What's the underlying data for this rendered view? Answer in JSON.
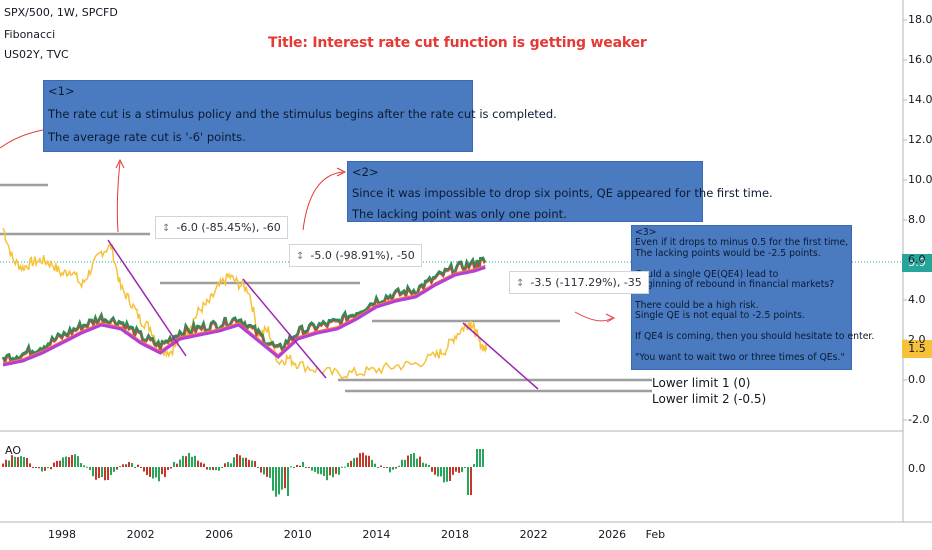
{
  "legend": {
    "line1": "SPX/500, 1W, SPCFD",
    "line2": "Fibonacci",
    "line3": "US02Y, TVC"
  },
  "title_note": "Title: Interest rate cut function is getting weaker",
  "notes": {
    "n1": [
      "<1>",
      "The rate cut is a stimulus policy and the stimulus begins after the rate cut is completed.",
      "The average rate cut is '-6' points."
    ],
    "n2": [
      "<2>",
      "Since it was impossible to drop six points, QE appeared for the first time.",
      "The lacking point was only one point."
    ],
    "n3": [
      "<3>",
      "Even if it drops to minus 0.5 for the first time,",
      "The lacking points would be -2.5 points.",
      "",
      "Could a single QE(QE4) lead to",
      "beginning of rebound in financial markets?",
      "",
      "There could be a high risk.",
      "Single QE is not equal to -2.5 points.",
      "",
      "If QE4 is coming, then you should hesitate to enter.",
      "",
      "\"You want to wait two or three times of QEs.\""
    ]
  },
  "measures": {
    "m1": "-6.0 (-85.45%), -60",
    "m2": "-5.0 (-98.91%), -50",
    "m3": "-3.5 (-117.29%), -35"
  },
  "lower_limits": {
    "l1": "Lower limit 1 (0)",
    "l2": "Lower limit 2 (-0.5)"
  },
  "price_badges": {
    "spx": "5.9",
    "us02y": "1.5"
  },
  "ao_label": "AO",
  "colors": {
    "us02y": "#f7c23a",
    "ma_purple": "#b23fd8",
    "ma_red": "#e53935",
    "spx_green": "#2e8b57",
    "trend_purple": "#9c27b0",
    "grey_level": "#9e9e9e",
    "note_bg": "#4a7bc0",
    "badge_green": "#26a69a",
    "badge_yellow": "#f7c23a",
    "ao_green": "#26a65b",
    "ao_red": "#c0392b"
  },
  "chart_data": {
    "type": "line",
    "title": "Title: Interest rate cut function is getting weaker",
    "y_axis_ticks": [
      "18.0",
      "16.0",
      "14.0",
      "12.0",
      "10.0",
      "8.0",
      "6.0",
      "4.0",
      "2.0",
      "0.0",
      "-2.0"
    ],
    "ao_axis_ticks": [
      "0.0"
    ],
    "x_axis_ticks": [
      "1998",
      "2002",
      "2006",
      "2010",
      "2014",
      "2018",
      "2022",
      "2026",
      "Feb"
    ],
    "ylim": [
      -2.0,
      18.0
    ],
    "series": [
      {
        "name": "US02Y",
        "x": [
          1995.0,
          1995.5,
          1996.0,
          1996.5,
          1997.0,
          1997.5,
          1998.0,
          1998.5,
          1999.0,
          1999.5,
          2000.0,
          2000.5,
          2001.0,
          2001.5,
          2002.0,
          2002.5,
          2003.0,
          2003.5,
          2004.0,
          2004.5,
          2005.0,
          2005.5,
          2006.0,
          2006.5,
          2007.0,
          2007.5,
          2008.0,
          2008.5,
          2009.0,
          2009.5,
          2010.0,
          2011.0,
          2012.0,
          2013.0,
          2014.0,
          2015.0,
          2016.0,
          2017.0,
          2017.5,
          2018.0,
          2018.5,
          2018.8,
          2019.0,
          2019.3,
          2019.6
        ],
        "values": [
          7.6,
          6.0,
          5.6,
          5.9,
          6.0,
          5.8,
          5.3,
          5.5,
          4.7,
          5.6,
          6.4,
          6.7,
          4.6,
          3.9,
          3.0,
          2.6,
          1.6,
          1.4,
          2.0,
          2.7,
          3.5,
          3.9,
          4.7,
          5.2,
          4.8,
          4.5,
          2.3,
          2.5,
          0.9,
          1.1,
          0.8,
          0.5,
          0.3,
          0.35,
          0.5,
          0.7,
          0.8,
          1.2,
          1.5,
          2.2,
          2.7,
          2.9,
          2.5,
          1.8,
          1.5
        ]
      },
      {
        "name": "SPX/500",
        "x": [
          1995.0,
          1996.0,
          1997.0,
          1998.0,
          1999.0,
          2000.0,
          2001.0,
          2002.0,
          2003.0,
          2004.0,
          2005.0,
          2006.0,
          2007.0,
          2008.0,
          2009.0,
          2010.0,
          2011.0,
          2012.0,
          2013.0,
          2014.0,
          2015.0,
          2016.0,
          2017.0,
          2018.0,
          2019.0,
          2019.6
        ],
        "values": [
          1.0,
          1.2,
          1.6,
          2.1,
          2.6,
          3.0,
          2.8,
          2.1,
          1.6,
          2.3,
          2.5,
          2.7,
          3.0,
          2.2,
          1.4,
          2.3,
          2.6,
          2.8,
          3.3,
          3.9,
          4.2,
          4.4,
          5.0,
          5.5,
          5.7,
          5.9
        ]
      }
    ],
    "annotations": [
      "-6.0 (-85.45%), -60",
      "-5.0 (-98.91%), -50",
      "-3.5 (-117.29%), -35",
      "Lower limit 1 (0)",
      "Lower limit 2 (-0.5)"
    ]
  }
}
